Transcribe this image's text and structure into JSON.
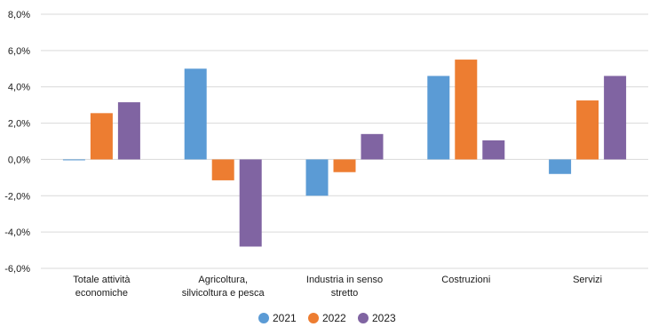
{
  "chart_data": {
    "type": "bar",
    "categories": [
      [
        "Totale attività",
        "economiche"
      ],
      [
        "Agricoltura,",
        "silvicoltura e pesca"
      ],
      [
        "Industria in senso",
        "stretto"
      ],
      [
        "Costruzioni"
      ],
      [
        "Servizi"
      ]
    ],
    "series": [
      {
        "name": "2021",
        "color": "#5b9bd5",
        "values": [
          -0.05,
          5.0,
          -2.0,
          4.6,
          -0.8
        ]
      },
      {
        "name": "2022",
        "color": "#ed7d31",
        "values": [
          2.55,
          -1.15,
          -0.7,
          5.5,
          3.25
        ]
      },
      {
        "name": "2023",
        "color": "#8064a2",
        "values": [
          3.15,
          -4.8,
          1.4,
          1.05,
          4.6
        ]
      }
    ],
    "ylim": [
      -6,
      8
    ],
    "yticks": [
      8,
      6,
      4,
      2,
      0,
      -2,
      -4,
      -6
    ],
    "ytick_labels": [
      "8,0%",
      "6,0%",
      "4,0%",
      "2,0%",
      "0,0%",
      "-2,0%",
      "-4,0%",
      "-6,0%"
    ],
    "grid": true,
    "legend_position": "bottom-center",
    "title": "",
    "xlabel": "",
    "ylabel": ""
  }
}
